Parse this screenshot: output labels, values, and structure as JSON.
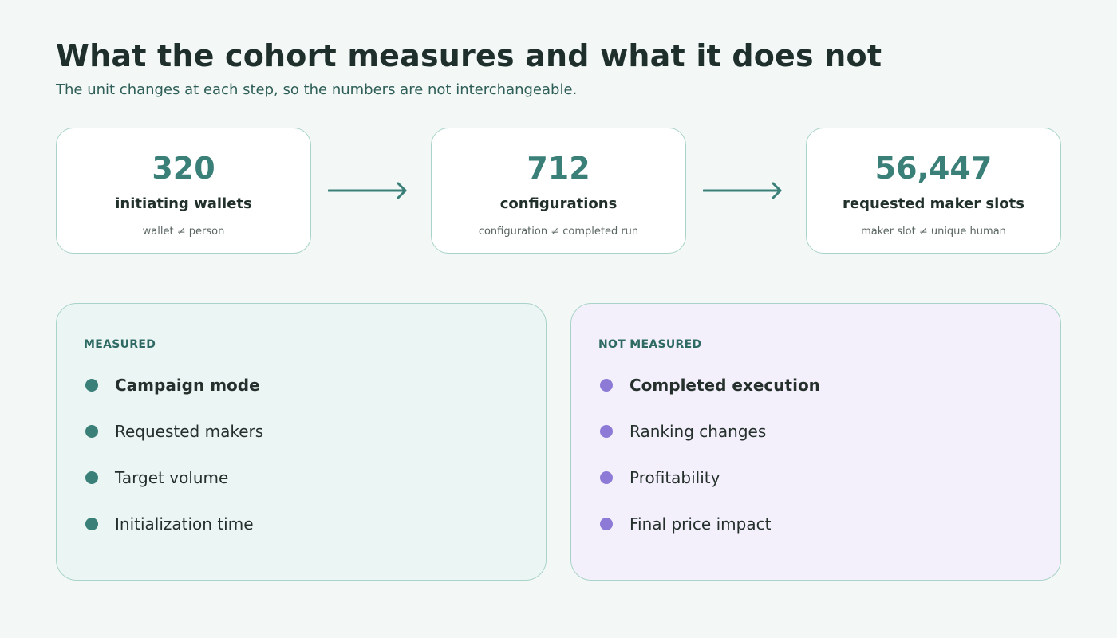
{
  "header": {
    "title": "What the cohort measures and what it does not",
    "subtitle": "The unit changes at each step, so the numbers are not interchangeable."
  },
  "flow": [
    {
      "value": "320",
      "label": "initiating wallets",
      "note": "wallet ≠ person"
    },
    {
      "value": "712",
      "label": "configurations",
      "note": "configuration ≠ completed run"
    },
    {
      "value": "56,447",
      "label": "requested maker slots",
      "note": "maker slot ≠ unique human"
    }
  ],
  "measured": {
    "heading": "MEASURED",
    "items": [
      "Campaign mode",
      "Requested makers",
      "Target volume",
      "Initialization time"
    ]
  },
  "not_measured": {
    "heading": "NOT MEASURED",
    "items": [
      "Completed execution",
      "Ranking changes",
      "Profitability",
      "Final price impact"
    ]
  },
  "colors": {
    "accent_teal": "#3a7f78",
    "accent_purple": "#8c7ad6",
    "background": "#f3f8f6"
  }
}
